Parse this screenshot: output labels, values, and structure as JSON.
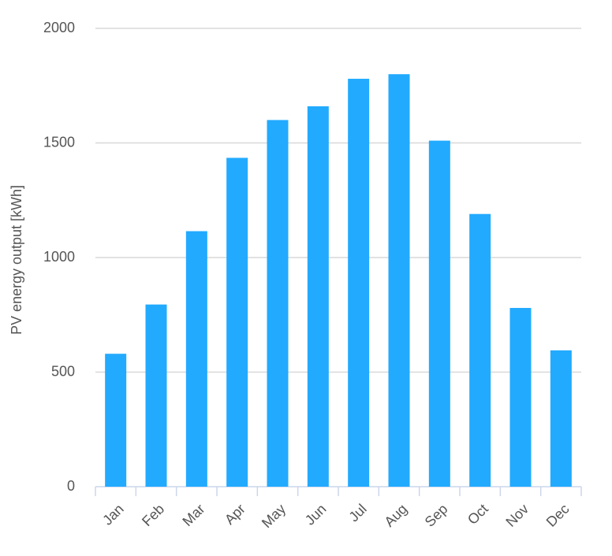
{
  "chart_data": {
    "type": "bar",
    "y_label": "PV energy output [kWh]",
    "categories": [
      "Jan",
      "Feb",
      "Mar",
      "Apr",
      "May",
      "Jun",
      "Jul",
      "Aug",
      "Sep",
      "Oct",
      "Nov",
      "Dec"
    ],
    "values": [
      580,
      795,
      1115,
      1435,
      1600,
      1660,
      1780,
      1800,
      1510,
      1190,
      780,
      595
    ],
    "color": "#22aaff",
    "ylim": [
      0,
      2000
    ],
    "yticks": [
      0,
      500,
      1000,
      1500,
      2000
    ],
    "grid": true
  }
}
